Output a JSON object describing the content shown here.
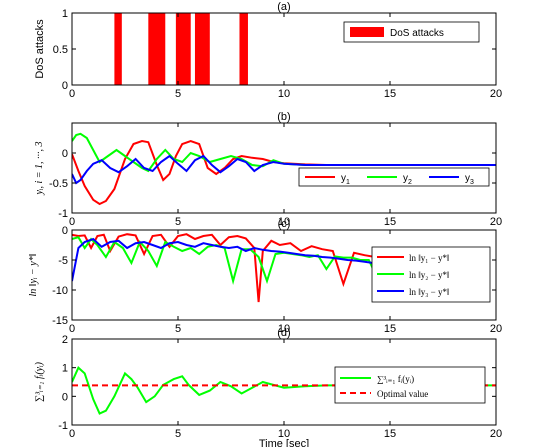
{
  "chart_data": [
    {
      "panel_title": "(a)",
      "type": "bar",
      "ylabel": "DoS attacks",
      "xlim": [
        0,
        20
      ],
      "ylim": [
        0,
        1
      ],
      "xticks": [
        "0",
        "5",
        "10",
        "15",
        "20"
      ],
      "yticks": [
        "0",
        "0.5",
        "1"
      ],
      "intervals": [
        [
          2.0,
          2.35
        ],
        [
          3.6,
          4.4
        ],
        [
          4.9,
          5.6
        ],
        [
          5.8,
          6.5
        ],
        [
          7.9,
          8.3
        ]
      ],
      "legend": {
        "label": "DoS attacks",
        "color": "#ff0000",
        "position": "upper-right"
      }
    },
    {
      "panel_title": "(b)",
      "type": "line",
      "ylabel": "y_i, i = 1, ..., 3",
      "xlim": [
        0,
        20
      ],
      "ylim": [
        -1,
        0.5
      ],
      "xticks": [
        "0",
        "5",
        "10",
        "15",
        "20"
      ],
      "yticks": [
        "-1",
        "-0.5",
        "0"
      ],
      "legend_position": "lower-right",
      "series": [
        {
          "name": "y1",
          "color": "#ff0000",
          "x": [
            0,
            0.3,
            0.6,
            1.0,
            1.3,
            1.6,
            2.0,
            2.5,
            2.9,
            3.3,
            3.6,
            4.0,
            4.3,
            4.6,
            4.9,
            5.2,
            5.6,
            6.0,
            6.4,
            6.8,
            7.2,
            7.6,
            8.0,
            8.5,
            9.0,
            9.5,
            10,
            11,
            12,
            15,
            20
          ],
          "y": [
            -0.02,
            -0.3,
            -0.55,
            -0.78,
            -0.85,
            -0.8,
            -0.6,
            -0.1,
            0.15,
            0.2,
            0.18,
            -0.2,
            -0.45,
            -0.35,
            -0.05,
            0.15,
            0.2,
            0.15,
            -0.25,
            -0.35,
            -0.25,
            -0.1,
            -0.05,
            -0.08,
            -0.1,
            -0.15,
            -0.17,
            -0.19,
            -0.2,
            -0.2,
            -0.2
          ]
        },
        {
          "name": "y2",
          "color": "#00ff00",
          "x": [
            0,
            0.2,
            0.4,
            0.7,
            1.0,
            1.3,
            1.7,
            2.1,
            2.5,
            2.9,
            3.3,
            3.6,
            4.0,
            4.4,
            4.8,
            5.2,
            5.6,
            6.0,
            6.5,
            7.0,
            7.5,
            8.0,
            8.5,
            9.0,
            9.5,
            10,
            11,
            12,
            15,
            20
          ],
          "y": [
            0.2,
            0.3,
            0.32,
            0.25,
            0.05,
            -0.15,
            -0.05,
            0.05,
            -0.05,
            -0.15,
            -0.25,
            -0.3,
            -0.1,
            0.05,
            -0.1,
            -0.15,
            0.0,
            -0.05,
            -0.15,
            -0.1,
            -0.05,
            -0.1,
            -0.2,
            -0.22,
            -0.12,
            -0.18,
            -0.2,
            -0.2,
            -0.2,
            -0.2
          ]
        },
        {
          "name": "y3",
          "color": "#0000ff",
          "x": [
            0,
            0.2,
            0.4,
            0.7,
            1.0,
            1.4,
            1.8,
            2.2,
            2.6,
            3.0,
            3.4,
            3.8,
            4.2,
            4.6,
            5.0,
            5.4,
            5.8,
            6.2,
            6.6,
            7.0,
            7.4,
            7.8,
            8.2,
            8.6,
            9.0,
            9.5,
            10,
            11,
            12,
            15,
            20
          ],
          "y": [
            -0.35,
            -0.5,
            -0.45,
            -0.3,
            -0.18,
            -0.12,
            -0.25,
            -0.32,
            -0.22,
            -0.1,
            -0.25,
            -0.3,
            -0.15,
            -0.05,
            -0.18,
            -0.3,
            -0.12,
            -0.05,
            -0.2,
            -0.32,
            -0.22,
            -0.1,
            -0.15,
            -0.3,
            -0.2,
            -0.15,
            -0.18,
            -0.2,
            -0.2,
            -0.2,
            -0.2
          ]
        }
      ]
    },
    {
      "panel_title": "(c)",
      "type": "line",
      "ylabel": "ln ||y_i − y*||",
      "xlim": [
        0,
        20
      ],
      "ylim": [
        -15,
        0
      ],
      "xticks": [
        "0",
        "5",
        "10",
        "15",
        "20"
      ],
      "yticks": [
        "-15",
        "-10",
        "-5",
        "0"
      ],
      "legend_position": "right",
      "series": [
        {
          "name": "ln ||y1 − y*||",
          "color": "#ff0000",
          "x": [
            0,
            0.3,
            0.6,
            0.9,
            1.2,
            1.5,
            1.8,
            2.2,
            2.6,
            3.0,
            3.4,
            3.8,
            4.2,
            4.6,
            5.0,
            5.4,
            5.8,
            6.2,
            6.6,
            7.0,
            7.4,
            7.8,
            8.2,
            8.6,
            8.8,
            9.0,
            9.4,
            9.8,
            10.3,
            10.8,
            11.3,
            11.8,
            12.3,
            12.8,
            13.3,
            13.8,
            14.3,
            14.5,
            14.8,
            15.3,
            15.8
          ],
          "y": [
            -0.8,
            -1.0,
            -0.9,
            -3.0,
            -1.0,
            -0.8,
            -3.5,
            -1.1,
            -0.7,
            -0.9,
            -4.0,
            -1.0,
            -0.8,
            -2.8,
            -1.0,
            -0.7,
            -1.5,
            -1.0,
            -0.8,
            -2.5,
            -1.2,
            -1.0,
            -1.4,
            -3.0,
            -12.0,
            -3.5,
            -1.8,
            -2.5,
            -2.2,
            -3.5,
            -2.7,
            -3.2,
            -3.5,
            -9.0,
            -3.8,
            -4.2,
            -4.5,
            -11.0,
            -4.8,
            -5.2,
            -5.6
          ]
        },
        {
          "name": "ln ||y2 − y*||",
          "color": "#00ff00",
          "x": [
            0,
            0.3,
            0.6,
            0.9,
            1.2,
            1.6,
            2.0,
            2.4,
            2.8,
            3.2,
            3.6,
            4.0,
            4.4,
            4.8,
            5.2,
            5.6,
            6.0,
            6.4,
            6.8,
            7.2,
            7.6,
            8.0,
            8.4,
            8.8,
            9.2,
            9.6,
            10.0,
            10.4,
            10.8,
            11.2,
            11.6,
            12.0,
            12.4,
            12.8,
            13.2,
            13.6,
            14.0,
            14.4,
            14.8,
            15.2,
            15.6,
            16.0,
            16.4,
            16.8
          ],
          "y": [
            -1.5,
            -1.2,
            -3.0,
            -1.5,
            -2.5,
            -4.5,
            -2.0,
            -3.0,
            -5.5,
            -2.0,
            -3.5,
            -6.0,
            -2.0,
            -2.8,
            -3.5,
            -3.0,
            -4.0,
            -2.8,
            -2.5,
            -3.0,
            -8.5,
            -3.2,
            -3.2,
            -4.5,
            -8.5,
            -4.0,
            -3.8,
            -4.0,
            -4.2,
            -4.5,
            -4.2,
            -6.5,
            -4.4,
            -4.6,
            -4.6,
            -5.0,
            -5.0,
            -8.0,
            -5.3,
            -5.6,
            -5.8,
            -6.0,
            -6.3,
            -6.5
          ]
        },
        {
          "name": "ln ||y3 − y*||",
          "color": "#0000ff",
          "x": [
            0,
            0.3,
            0.6,
            1.0,
            1.4,
            1.8,
            2.2,
            2.6,
            3.0,
            3.4,
            3.8,
            4.2,
            4.6,
            5.0,
            5.4,
            5.8,
            6.2,
            6.6,
            7.0,
            7.4,
            7.8,
            8.2,
            8.6,
            9.0,
            9.4,
            9.8,
            10.2,
            10.6,
            11.0,
            11.4,
            11.8,
            12.2,
            12.6,
            13.0,
            13.4,
            13.8,
            14.2,
            14.6,
            15.0,
            15.4,
            15.8,
            16.2,
            16.6,
            17.0
          ],
          "y": [
            -8.5,
            -3.0,
            -2.0,
            -1.5,
            -2.8,
            -2.0,
            -1.8,
            -3.0,
            -2.2,
            -2.0,
            -2.5,
            -3.0,
            -2.2,
            -2.0,
            -2.5,
            -2.8,
            -2.2,
            -2.5,
            -2.8,
            -3.0,
            -2.8,
            -3.5,
            -3.0,
            -3.3,
            -3.5,
            -3.6,
            -3.8,
            -4.0,
            -4.2,
            -4.3,
            -4.5,
            -4.6,
            -4.8,
            -5.0,
            -5.1,
            -5.3,
            -5.5,
            -5.6,
            -5.8,
            -6.0,
            -6.1,
            -6.3,
            -6.5,
            -6.6
          ]
        }
      ]
    },
    {
      "panel_title": "(d)",
      "type": "line",
      "ylabel": "∑_{i=1}^{3} f_i(y_i)",
      "xlabel": "Time [sec]",
      "xlim": [
        0,
        20
      ],
      "ylim": [
        -1,
        2
      ],
      "xticks": [
        "0",
        "5",
        "10",
        "15",
        "20"
      ],
      "yticks": [
        "-1",
        "0",
        "1",
        "2"
      ],
      "legend_position": "right",
      "series": [
        {
          "name": "∑_{i=1}^{3} f_i(y_i)",
          "color": "#00ff00",
          "x": [
            0,
            0.3,
            0.6,
            1.0,
            1.3,
            1.6,
            2.0,
            2.5,
            2.8,
            3.1,
            3.5,
            3.9,
            4.3,
            4.8,
            5.2,
            5.5,
            6.0,
            6.5,
            7.0,
            7.5,
            8.0,
            8.5,
            9.0,
            9.5,
            10.0,
            11.0,
            12.0,
            14.0,
            20.0
          ],
          "y": [
            0.5,
            1.0,
            0.8,
            -0.1,
            -0.6,
            -0.5,
            0.0,
            0.8,
            0.6,
            0.3,
            -0.2,
            0.0,
            0.4,
            0.6,
            0.7,
            0.4,
            0.05,
            0.2,
            0.5,
            0.35,
            0.1,
            0.3,
            0.5,
            0.4,
            0.3,
            0.35,
            0.38,
            0.38,
            0.38
          ]
        },
        {
          "name": "Optimal value",
          "color": "#ff0000",
          "dashed": true,
          "x": [
            0,
            20
          ],
          "y": [
            0.38,
            0.38
          ]
        }
      ]
    }
  ]
}
